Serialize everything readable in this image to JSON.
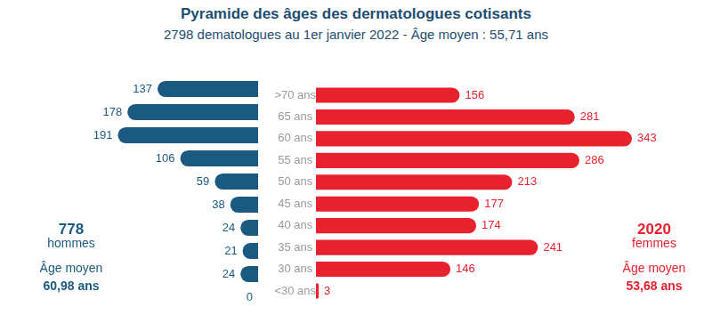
{
  "chart_data": [
    {
      "type": "bar",
      "title": "Pyramide des âges des dermatologues cotisants",
      "subtitle": "2798 dematologues au 1er janvier 2022 - Âge moyen : 55,71 ans",
      "orientation": "horizontal",
      "categories": [
        ">70 ans",
        "65 ans",
        "60 ans",
        "55 ans",
        "50 ans",
        "45 ans",
        "40 ans",
        "35 ans",
        "30 ans",
        "<30 ans"
      ],
      "series": [
        {
          "name": "hommes",
          "color": "#1b5a80",
          "values": [
            137,
            178,
            191,
            106,
            59,
            38,
            24,
            21,
            24,
            0
          ]
        }
      ],
      "xlim": [
        0,
        280
      ],
      "grid": false,
      "data_labels": true,
      "tick_labels": false,
      "annotations": [
        "778",
        "hommes",
        "Âge moyen",
        "60,98 ans"
      ]
    },
    {
      "type": "bar",
      "orientation": "horizontal",
      "categories": [
        ">70 ans",
        "65 ans",
        "60 ans",
        "55 ans",
        "50 ans",
        "45 ans",
        "40 ans",
        "35 ans",
        "30 ans",
        "<30 ans"
      ],
      "series": [
        {
          "name": "femmes",
          "color": "#e8212e",
          "values": [
            156,
            281,
            343,
            286,
            213,
            177,
            174,
            241,
            146,
            3
          ]
        }
      ],
      "xlim": [
        0,
        430
      ],
      "grid": false,
      "data_labels": true,
      "tick_labels": "y",
      "annotations": [
        "2020",
        "femmes",
        "Âge moyen",
        "53,68 ans"
      ]
    }
  ]
}
